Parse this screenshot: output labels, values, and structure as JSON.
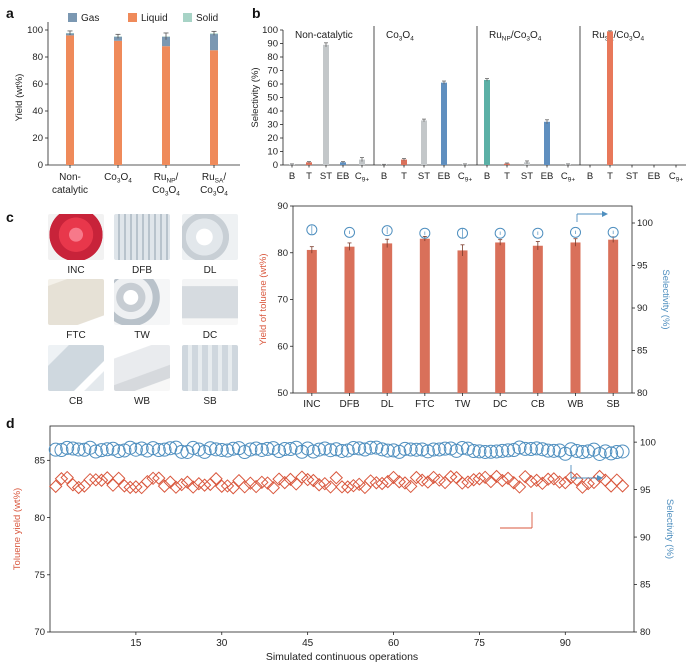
{
  "colors": {
    "gas": "#7b98b2",
    "liquid": "#ef8a5a",
    "solid": "#a7d3c6",
    "grey_bar": "#c3c7c9",
    "blue_bar": "#5f8fbf",
    "teal_bar": "#5bb0a6",
    "red_bar": "#d9705a",
    "orange_bar": "#e8785a",
    "sel_circle": "#4f8fbf",
    "diamond": "#d9573d"
  },
  "chart_data": [
    {
      "id": "a",
      "panel_label": "a",
      "type": "bar",
      "stacked": true,
      "ylabel": "Yield (wt%)",
      "ylim": [
        0,
        100
      ],
      "yticks": [
        "0",
        "20",
        "40",
        "60",
        "80",
        "100"
      ],
      "legend": [
        "Gas",
        "Liquid",
        "Solid"
      ],
      "categories": [
        {
          "line1": "Non-",
          "line2": "catalytic",
          "rich": false
        },
        {
          "line1": "Co3O4",
          "rich": true,
          "parts": [
            [
              "Co",
              ""
            ],
            [
              "3",
              "sub"
            ],
            [
              "O",
              ""
            ],
            [
              "4",
              "sub"
            ]
          ]
        },
        {
          "line1": "RuNP/",
          "line2": "Co3O4",
          "rich": true,
          "parts1": [
            [
              "Ru",
              ""
            ],
            [
              "NP",
              "sub"
            ],
            [
              "/",
              ""
            ]
          ],
          "parts2": [
            [
              "Co",
              ""
            ],
            [
              "3",
              "sub"
            ],
            [
              "O",
              ""
            ],
            [
              "4",
              "sub"
            ]
          ]
        },
        {
          "line1": "RuSA/",
          "line2": "Co3O4",
          "rich": true,
          "parts1": [
            [
              "Ru",
              ""
            ],
            [
              "SA",
              "sub"
            ],
            [
              "/",
              ""
            ]
          ],
          "parts2": [
            [
              "Co",
              ""
            ],
            [
              "3",
              "sub"
            ],
            [
              "O",
              ""
            ],
            [
              "4",
              "sub"
            ]
          ]
        }
      ],
      "series": [
        {
          "name": "Liquid",
          "values": [
            96,
            92,
            88,
            85
          ]
        },
        {
          "name": "Gas",
          "values": [
            1.5,
            3,
            7,
            12
          ]
        },
        {
          "name": "Solid",
          "values": [
            0.3,
            0.3,
            0.3,
            0.5
          ]
        }
      ],
      "errors": [
        1.5,
        1.5,
        2.5,
        1.5
      ]
    },
    {
      "id": "b",
      "panel_label": "b",
      "type": "bar",
      "ylabel": "Selectivity (%)",
      "ylim": [
        0,
        100
      ],
      "yticks": [
        "0",
        "10",
        "20",
        "30",
        "40",
        "50",
        "60",
        "70",
        "80",
        "90",
        "100"
      ],
      "categories": [
        "B",
        "T",
        "ST",
        "EB",
        "C9+"
      ],
      "subplots": [
        {
          "title": "Non-catalytic",
          "title_parts": [
            [
              "Non-catalytic",
              ""
            ]
          ],
          "values": [
            0.5,
            2,
            89,
            2,
            4
          ],
          "errors": [
            0.3,
            0.5,
            1.5,
            0.5,
            1.5
          ],
          "colors": [
            "grey",
            "red",
            "grey",
            "blue",
            "grey"
          ]
        },
        {
          "title": "Co3O4",
          "title_parts": [
            [
              "Co",
              ""
            ],
            [
              "3",
              "sub"
            ],
            [
              "O",
              ""
            ],
            [
              "4",
              "sub"
            ]
          ],
          "values": [
            0.3,
            4,
            33,
            61,
            0.5
          ],
          "errors": [
            0.2,
            0.8,
            1,
            1.2,
            0.3
          ],
          "colors": [
            "grey",
            "red",
            "grey",
            "blue",
            "grey"
          ]
        },
        {
          "title": "RuNP/Co3O4",
          "title_parts": [
            [
              "Ru",
              ""
            ],
            [
              "NP",
              "sub"
            ],
            [
              "/Co",
              ""
            ],
            [
              "3",
              "sub"
            ],
            [
              "O",
              ""
            ],
            [
              "4",
              "sub"
            ]
          ],
          "values": [
            63,
            1,
            2,
            32,
            0.5
          ],
          "errors": [
            1,
            0.5,
            1,
            1.5,
            0.3
          ],
          "colors": [
            "teal",
            "red",
            "grey",
            "blue",
            "grey"
          ]
        },
        {
          "title": "RuSA/Co3O4",
          "title_parts": [
            [
              "Ru",
              ""
            ],
            [
              "SA",
              "sub"
            ],
            [
              "/Co",
              ""
            ],
            [
              "3",
              "sub"
            ],
            [
              "O",
              ""
            ],
            [
              "4",
              "sub"
            ]
          ],
          "values": [
            0,
            99,
            0,
            0,
            0
          ],
          "errors": [
            0,
            0.4,
            0,
            0,
            0
          ],
          "colors": [
            "grey",
            "orange",
            "grey",
            "blue",
            "grey"
          ]
        }
      ]
    },
    {
      "id": "c",
      "panel_label": "c",
      "type": "bar",
      "ylabel": "Yield of toluene (wt%)",
      "y2label": "Selectivity (%)",
      "ylim": [
        50,
        90
      ],
      "y2lim": [
        80,
        102
      ],
      "yticks": [
        "50",
        "60",
        "70",
        "80",
        "90"
      ],
      "y2ticks": [
        "80",
        "85",
        "90",
        "95",
        "100"
      ],
      "categories": [
        "INC",
        "DFB",
        "DL",
        "FTC",
        "TW",
        "DC",
        "CB",
        "WB",
        "SB"
      ],
      "series": [
        {
          "name": "Yield of toluene",
          "values": [
            80.6,
            81.3,
            82.0,
            83.0,
            80.5,
            82.2,
            81.5,
            82.2,
            82.8
          ],
          "errors": [
            0.7,
            0.8,
            0.9,
            0.5,
            1.2,
            0.6,
            0.9,
            0.8,
            0.6
          ]
        },
        {
          "name": "Selectivity",
          "values": [
            99.2,
            98.9,
            99.1,
            98.8,
            98.8,
            98.8,
            98.8,
            98.9,
            98.9
          ],
          "errors": [
            0.5,
            0.2,
            0.4,
            0.2,
            0.6,
            0.2,
            0.2,
            0.2,
            0.2
          ]
        }
      ]
    },
    {
      "id": "d",
      "panel_label": "d",
      "type": "scatter",
      "xlabel": "Simulated continuous operations",
      "ylabel": "Toluene yield (wt%)",
      "y2label": "Selectivity (%)",
      "xlim": [
        0,
        102
      ],
      "ylim": [
        70,
        88
      ],
      "y2lim": [
        80,
        101.7
      ],
      "xticks": [
        "15",
        "30",
        "45",
        "60",
        "75",
        "90"
      ],
      "yticks": [
        "70",
        "75",
        "80",
        "85"
      ],
      "y2ticks": [
        "80",
        "85",
        "90",
        "95",
        "100"
      ],
      "n_points": 100,
      "yield_mean": 83.1,
      "selectivity_mean": 99.6
    }
  ],
  "panel_c_images": [
    {
      "label": "INC",
      "icon": "red-plastic-lid"
    },
    {
      "label": "DFB",
      "icon": "clear-food-box"
    },
    {
      "label": "DL",
      "icon": "clear-disc-lids"
    },
    {
      "label": "FTC",
      "icon": "white-tray"
    },
    {
      "label": "TW",
      "icon": "tableware-scrap"
    },
    {
      "label": "DC",
      "icon": "disposable-cup"
    },
    {
      "label": "CB",
      "icon": "clear-box"
    },
    {
      "label": "WB",
      "icon": "white-box"
    },
    {
      "label": "SB",
      "icon": "storage-box"
    }
  ]
}
